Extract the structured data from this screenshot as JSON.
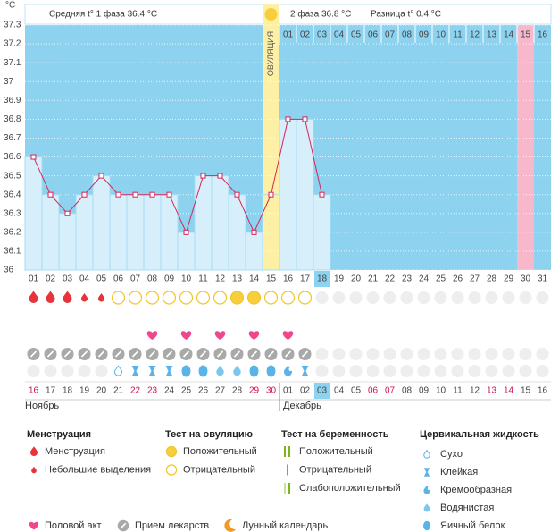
{
  "chart_data": {
    "type": "line",
    "y_label": "°C",
    "header": {
      "phase1": "Средняя t° 1 фаза 36.4 °C",
      "phase2": "2 фаза 36.8 °C",
      "difference": "Разница t° 0.4 °C"
    },
    "ovulation_label": "ОВУЛЯЦИЯ",
    "ovulation_day": "15",
    "highlight_day": "30",
    "today": "18",
    "phase2_start": "16",
    "phase2_days": [
      "01",
      "02",
      "03",
      "04",
      "05",
      "06",
      "07",
      "08",
      "09",
      "10",
      "11",
      "12",
      "13",
      "14",
      "15",
      "16"
    ],
    "categories": [
      "01",
      "02",
      "03",
      "04",
      "05",
      "06",
      "07",
      "08",
      "09",
      "10",
      "11",
      "12",
      "13",
      "14",
      "15",
      "16",
      "17",
      "18",
      "19",
      "20",
      "21",
      "22",
      "23",
      "24",
      "25",
      "26",
      "27",
      "28",
      "29",
      "30",
      "31"
    ],
    "values": [
      36.6,
      36.4,
      36.3,
      36.4,
      36.5,
      36.4,
      36.4,
      36.4,
      36.4,
      36.2,
      36.5,
      36.5,
      36.4,
      36.2,
      36.4,
      36.8,
      36.8,
      36.4,
      null,
      null,
      null,
      null,
      null,
      null,
      null,
      null,
      null,
      null,
      null,
      null,
      null
    ],
    "color": "#d6245a",
    "ylim": [
      36,
      37.3
    ],
    "yticks": [
      36,
      36.1,
      36.2,
      36.3,
      36.4,
      36.5,
      36.6,
      36.7,
      36.8,
      36.9,
      37,
      37.1,
      37.2,
      37.3
    ],
    "grid": true,
    "menstruation": [
      0,
      0,
      0,
      1,
      1,
      null,
      null,
      null,
      null,
      null,
      null,
      null,
      null,
      null,
      null,
      null,
      null,
      null,
      null,
      null,
      null,
      null,
      null,
      null,
      null,
      null,
      null,
      null,
      null,
      null,
      null
    ],
    "ovulation_test": [
      null,
      null,
      null,
      null,
      null,
      1,
      1,
      1,
      1,
      1,
      1,
      1,
      0,
      0,
      1,
      1,
      1,
      null,
      null,
      null,
      null,
      null,
      null,
      null,
      null,
      null,
      null,
      null,
      null,
      null,
      null
    ],
    "intercourse": [
      null,
      null,
      null,
      null,
      null,
      null,
      null,
      0,
      null,
      0,
      null,
      0,
      null,
      0,
      null,
      0,
      null,
      null,
      null,
      null,
      null,
      null,
      null,
      null,
      null,
      null,
      null,
      null,
      null,
      null,
      null
    ],
    "medication": [
      0,
      0,
      0,
      0,
      0,
      0,
      0,
      0,
      0,
      0,
      0,
      0,
      0,
      0,
      0,
      0,
      0,
      null,
      null,
      null,
      null,
      null,
      null,
      null,
      null,
      null,
      null,
      null,
      null,
      null,
      null
    ],
    "cervical_fluid": [
      null,
      null,
      null,
      null,
      null,
      0,
      1,
      1,
      1,
      4,
      4,
      3,
      3,
      4,
      4,
      2,
      1,
      null,
      null,
      null,
      null,
      null,
      null,
      null,
      null,
      null,
      null,
      null,
      null,
      null,
      null
    ],
    "dates": [
      "16",
      "17",
      "18",
      "19",
      "20",
      "21",
      "22",
      "23",
      "24",
      "25",
      "26",
      "27",
      "28",
      "29",
      "30",
      "01",
      "02",
      "03",
      "04",
      "05",
      "06",
      "07",
      "08",
      "09",
      "10",
      "11",
      "12",
      "13",
      "14",
      "15",
      "16"
    ],
    "weekend": [
      true,
      false,
      false,
      false,
      false,
      false,
      true,
      true,
      false,
      false,
      false,
      false,
      false,
      true,
      true,
      false,
      false,
      false,
      false,
      false,
      true,
      true,
      false,
      false,
      false,
      false,
      false,
      true,
      true,
      false,
      false
    ],
    "weekend_color": "#d0104c",
    "months": [
      {
        "name": "Ноябрь",
        "from": "16"
      },
      {
        "name": "Декабрь",
        "from": "01"
      }
    ],
    "legend": [
      {
        "title": "Менструация",
        "items": [
          "Менструация",
          "Небольшие выделения"
        ]
      },
      {
        "title": "Тест на овуляцию",
        "items": [
          "Положительный",
          "Отрицательный"
        ]
      },
      {
        "title": "Тест на беременность",
        "items": [
          "Положительный",
          "Отрицательный",
          "Слабоположительный"
        ]
      },
      {
        "title": "Цервикальная жидкость",
        "items": [
          "Сухо",
          "Клейкая",
          "Кремообразная",
          "Водянистая",
          "Яичный белок"
        ]
      }
    ],
    "extras": [
      "Половой акт",
      "Прием лекарств",
      "Лунный календарь"
    ]
  }
}
